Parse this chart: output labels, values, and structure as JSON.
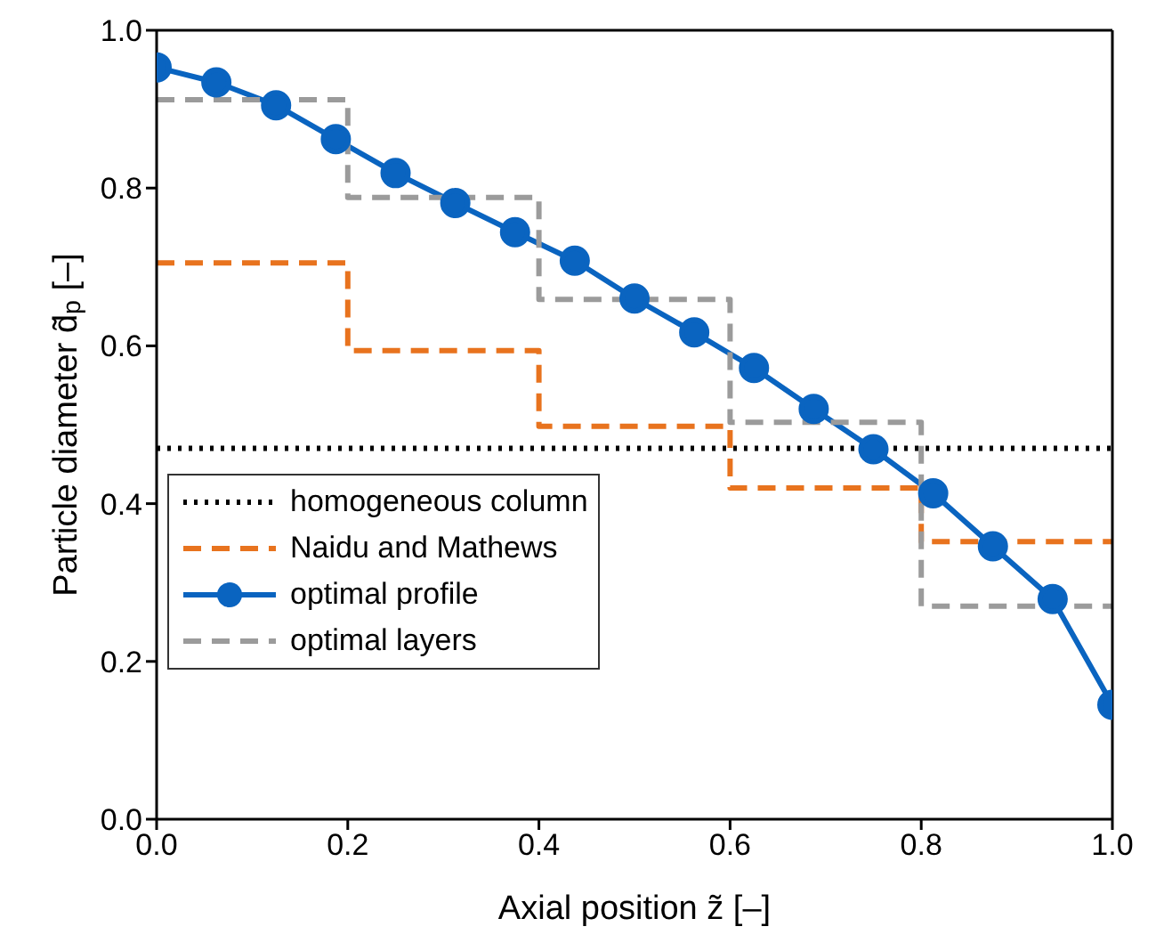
{
  "chart_data": {
    "type": "line",
    "xlabel": "Axial position z̃ [–]",
    "ylabel": "Particle diameter d̃$_{p}$ [–]",
    "xlim": [
      0,
      1
    ],
    "ylim": [
      0,
      1
    ],
    "xticks": [
      {
        "value": 0,
        "label": "0.0"
      },
      0.2,
      0.4,
      0.6,
      0.8,
      {
        "value": 1,
        "label": "1.0"
      }
    ],
    "yticks": [
      {
        "value": 0,
        "label": "0.0"
      },
      0.2,
      0.4,
      0.6,
      0.8,
      {
        "value": 1,
        "label": "1.0"
      }
    ],
    "legend": "bottom left",
    "series": [
      {
        "name": "homogeneous column",
        "type": "line",
        "color": "#000000",
        "line_style": "dotted",
        "marker": "none",
        "x": [
          0,
          1
        ],
        "values": [
          0.47,
          0.47
        ]
      },
      {
        "name": "Naidu and Mathews",
        "type": "step",
        "color": "#e8731e",
        "line_style": "dashed",
        "marker": "none",
        "x": [
          0,
          0.2,
          0.4,
          0.6,
          0.8,
          1
        ],
        "values": [
          0.705,
          0.594,
          0.498,
          0.42,
          0.352,
          0.352
        ]
      },
      {
        "name": "optimal profile",
        "type": "line",
        "color": "#0a64c0",
        "line_style": "solid",
        "marker": "circle",
        "x": [
          0,
          0.0625,
          0.125,
          0.1875,
          0.25,
          0.3125,
          0.375,
          0.4375,
          0.5,
          0.5625,
          0.625,
          0.6875,
          0.75,
          0.8125,
          0.875,
          0.9375,
          1
        ],
        "values": [
          0.953,
          0.934,
          0.905,
          0.862,
          0.819,
          0.781,
          0.744,
          0.708,
          0.66,
          0.617,
          0.572,
          0.52,
          0.469,
          0.413,
          0.346,
          0.279,
          0.145
        ]
      },
      {
        "name": "optimal layers",
        "type": "step",
        "color": "#9b9b9b",
        "line_style": "dashed",
        "marker": "none",
        "x": [
          0,
          0.2,
          0.4,
          0.6,
          0.8,
          1
        ],
        "values": [
          0.912,
          0.788,
          0.659,
          0.503,
          0.27,
          0.27
        ]
      }
    ]
  }
}
